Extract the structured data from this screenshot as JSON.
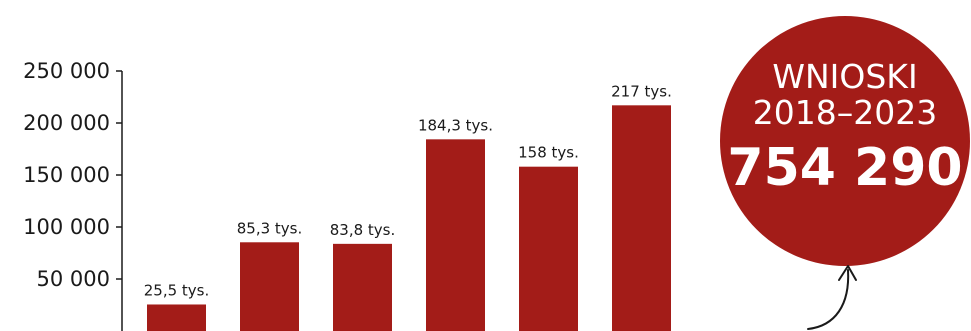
{
  "chart_data": {
    "type": "bar",
    "categories": [
      "",
      "",
      "",
      "",
      "",
      ""
    ],
    "values": [
      25500,
      85300,
      83800,
      184300,
      158000,
      217000
    ],
    "data_labels": [
      "25,5 tys.",
      "85,3 tys.",
      "83,8 tys.",
      "184,3 tys.",
      "158 tys.",
      "217 tys."
    ],
    "y_ticks": [
      50000,
      100000,
      150000,
      200000,
      250000
    ],
    "y_tick_labels": [
      "50 000",
      "100 000",
      "150 000",
      "200 000",
      "250 000"
    ],
    "ylim": [
      0,
      250000
    ],
    "grid": false,
    "bar_color": "#a31c18",
    "axis_color": "#1a1a1a"
  },
  "summary": {
    "title_line1": "WNIOSKI",
    "title_line2": "2018–2023",
    "total": "754 290",
    "circle_color": "#a31c18"
  }
}
